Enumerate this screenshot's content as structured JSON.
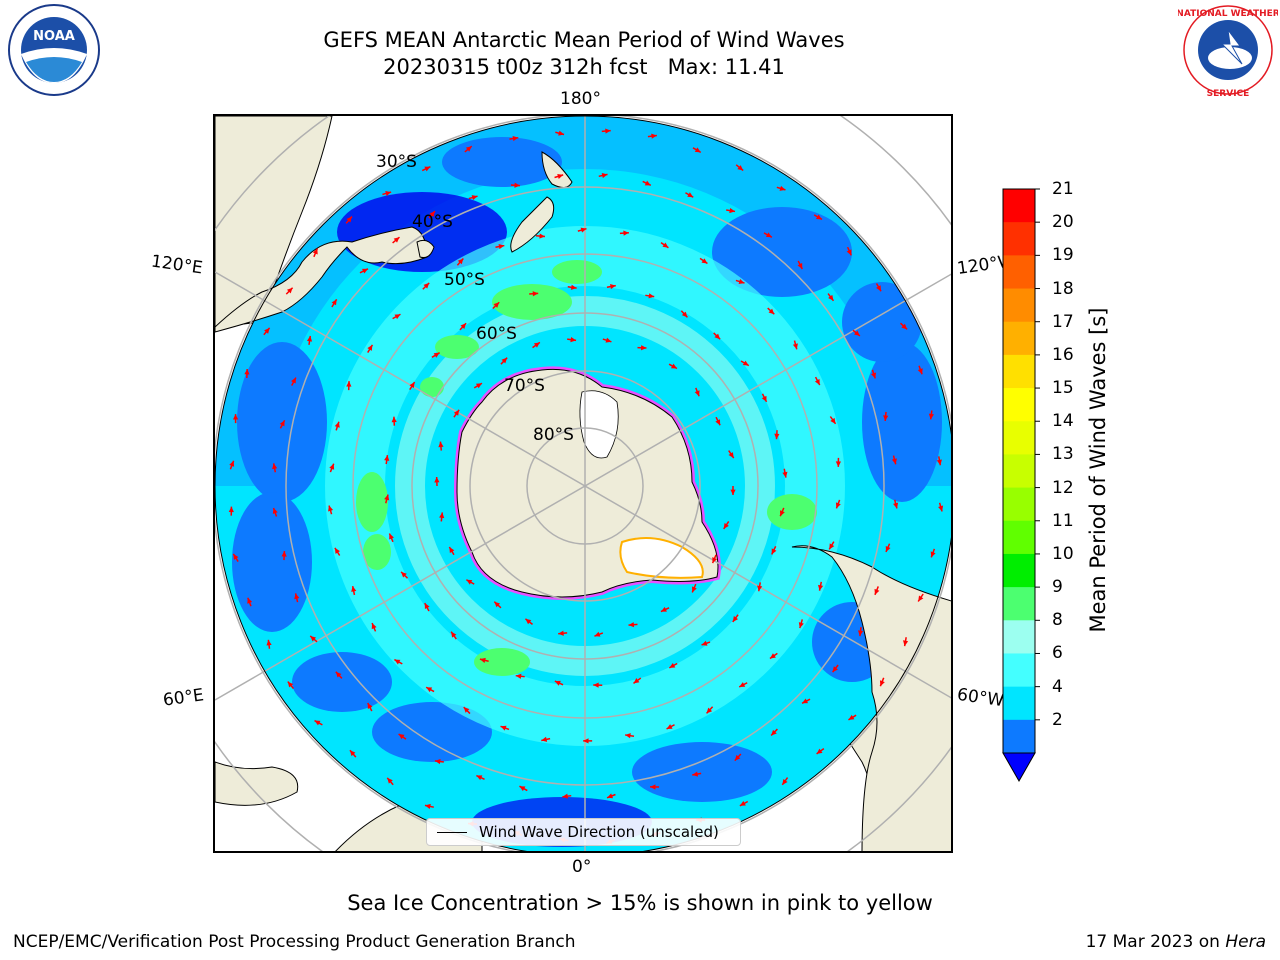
{
  "title": {
    "line1": "GEFS MEAN Antarctic Mean Period of Wind Waves",
    "line2": "20230315 t00z 312h fcst   Max: 11.41"
  },
  "logos": {
    "left": "NOAA",
    "right": "NATIONAL WEATHER SERVICE"
  },
  "map": {
    "projection": "south polar stereographic",
    "longitude_labels": {
      "top": "180°",
      "bottom": "0°",
      "upper_left": "120°E",
      "upper_right": "120°W",
      "lower_left": "60°E",
      "lower_right": "60°W"
    },
    "latitude_labels": [
      "30°S",
      "40°S",
      "50°S",
      "60°S",
      "70°S",
      "80°S"
    ],
    "legend_label": "Wind Wave Direction (unscaled)",
    "colors": {
      "land": "#eeecd9",
      "band_2_4": "#0d7aff",
      "band_4_6": "#00e5ff",
      "band_6_8": "#44ffff",
      "band_8_9": "#9cfff0",
      "band_9_10": "#4cff70",
      "arrows": "#ff0000",
      "sea_ice_low": "#ff40ff",
      "sea_ice_high": "#ffd700"
    }
  },
  "colorbar": {
    "label": "Mean Period of Wind Waves [s]",
    "ticks": [
      "21",
      "20",
      "19",
      "18",
      "17",
      "16",
      "15",
      "14",
      "13",
      "12",
      "11",
      "10",
      "9",
      "8",
      "6",
      "4",
      "2"
    ],
    "colors": [
      "#ff0000",
      "#ff3000",
      "#ff6000",
      "#ff8c00",
      "#ffb000",
      "#ffe000",
      "#ffff00",
      "#e8ff00",
      "#c8ff00",
      "#98ff00",
      "#60ff00",
      "#00ee00",
      "#4cff70",
      "#9cfff0",
      "#44ffff",
      "#00e5ff",
      "#0d7aff"
    ],
    "under_color": "#0000ff"
  },
  "footer": {
    "caption": "Sea Ice Concentration > 15% is shown in pink to yellow",
    "credit": "NCEP/EMC/Verification Post Processing Product Generation Branch",
    "date": "17 Mar 2023 on ",
    "machine": "Hera"
  }
}
